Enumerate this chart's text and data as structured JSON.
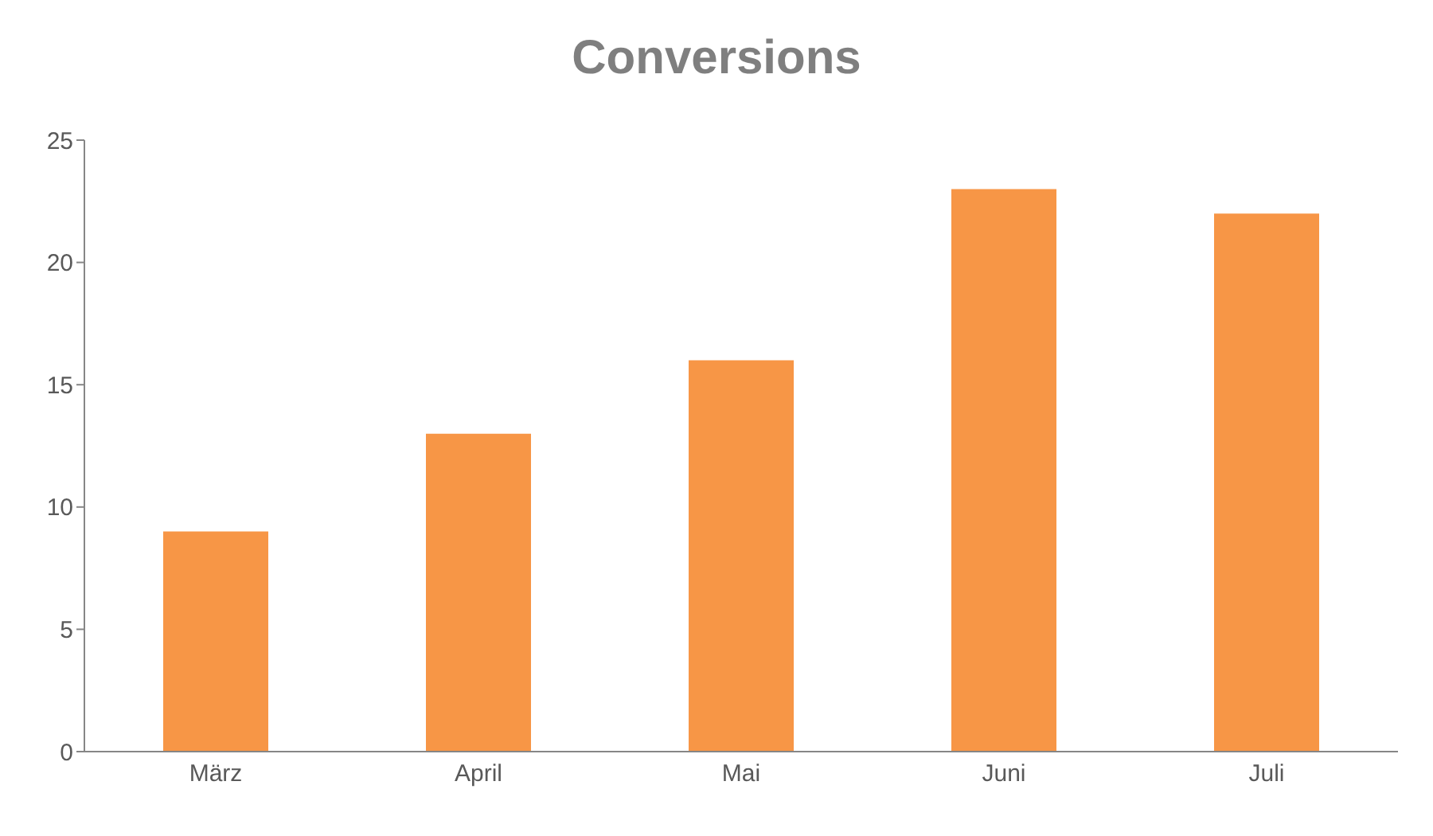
{
  "chart_data": {
    "type": "bar",
    "title": "Conversions",
    "categories": [
      "März",
      "April",
      "Mai",
      "Juni",
      "Juli"
    ],
    "values": [
      9,
      13,
      16,
      23,
      22
    ],
    "color": "#f79646",
    "ylim": [
      0,
      25
    ],
    "yticks": [
      0,
      5,
      10,
      15,
      20,
      25
    ],
    "grid": false,
    "legend": false
  }
}
